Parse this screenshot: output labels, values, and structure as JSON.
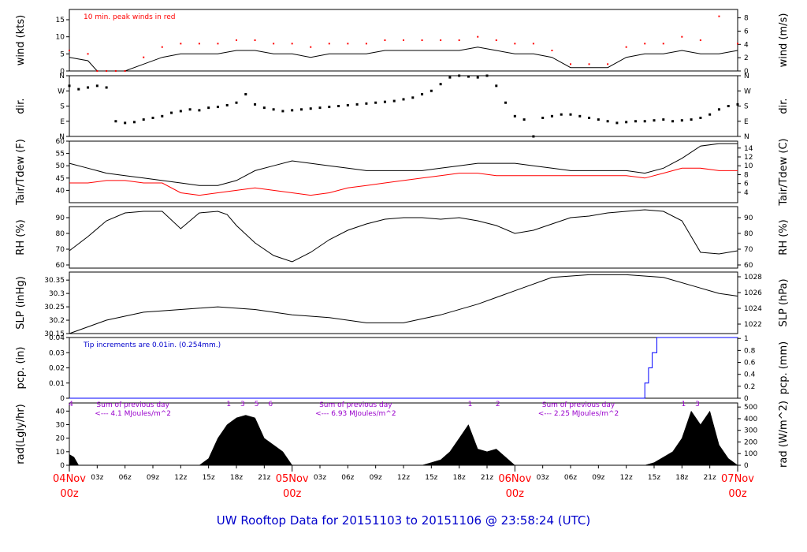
{
  "footer": {
    "title": "UW Rooftop Data for 20151103  to  20151106 @ 23:58:24  (UTC)"
  },
  "colors": {
    "temperature": "#000000",
    "dewpoint": "#ff0000",
    "peak_wind": "#ff0000",
    "precip": "#0000ff",
    "annotation_blue": "#0000cc",
    "annotation_purple": "#9900cc",
    "day_labels": "#ff0000"
  },
  "x_axis": {
    "hour_ticks": [
      "03z",
      "06z",
      "09z",
      "12z",
      "15z",
      "18z",
      "21z"
    ],
    "days": [
      {
        "date": "04Nov",
        "hour": "00z"
      },
      {
        "date": "05Nov",
        "hour": "00z"
      },
      {
        "date": "06Nov",
        "hour": "00z"
      },
      {
        "date": "07Nov",
        "hour": "00z"
      }
    ]
  },
  "chart_data": [
    {
      "id": "wind",
      "type": "line",
      "ylabel": "wind (kts)",
      "ylabel_right": "wind (m/s)",
      "ylim": [
        0,
        18
      ],
      "ticks": [
        0,
        5,
        10,
        15
      ],
      "ylim_right": [
        0,
        9.26
      ],
      "ticks_right": [
        0,
        2,
        4,
        6,
        8
      ],
      "annotation": "10 min. peak winds in red",
      "series": [
        {
          "name": "wind",
          "x": [
            0,
            2,
            3,
            4,
            5,
            6,
            8,
            10,
            12,
            14,
            16,
            18,
            20,
            22,
            24,
            26,
            28,
            30,
            32,
            34,
            36,
            38,
            40,
            42,
            44,
            46,
            48,
            50,
            52,
            54,
            56,
            58,
            60,
            62,
            64,
            66,
            68,
            70,
            72
          ],
          "values": [
            4,
            3,
            0,
            0,
            0,
            0,
            2,
            4,
            5,
            5,
            5,
            6,
            6,
            5,
            5,
            4,
            5,
            5,
            5,
            6,
            6,
            6,
            6,
            6,
            7,
            6,
            5,
            5,
            4,
            1,
            1,
            1,
            4,
            5,
            5,
            6,
            5,
            5,
            6
          ]
        },
        {
          "name": "10 min. peak winds",
          "x": [
            0,
            2,
            3,
            4,
            5,
            6,
            8,
            10,
            12,
            14,
            16,
            18,
            20,
            22,
            24,
            26,
            28,
            30,
            32,
            34,
            36,
            38,
            40,
            42,
            44,
            46,
            48,
            50,
            52,
            54,
            56,
            58,
            60,
            62,
            64,
            66,
            68,
            70,
            72
          ],
          "values": [
            6,
            5,
            0,
            0,
            0,
            0,
            4,
            7,
            8,
            8,
            8,
            9,
            9,
            8,
            8,
            7,
            8,
            8,
            8,
            9,
            9,
            9,
            9,
            9,
            10,
            9,
            8,
            8,
            6,
            2,
            2,
            2,
            7,
            8,
            8,
            10,
            9,
            16,
            8
          ]
        }
      ]
    },
    {
      "id": "dir",
      "type": "scatter",
      "ylabel": "dir.",
      "ylabel_right": "dir.",
      "ylim": [
        0,
        360
      ],
      "tick_values": [
        0,
        90,
        180,
        270,
        360
      ],
      "tick_labels": [
        "N",
        "E",
        "S",
        "W",
        "N"
      ],
      "series": [
        {
          "name": "direction",
          "x": [
            0,
            1,
            2,
            3,
            4,
            5,
            6,
            7,
            8,
            9,
            10,
            11,
            12,
            13,
            14,
            15,
            16,
            17,
            18,
            19,
            20,
            21,
            22,
            23,
            24,
            25,
            26,
            27,
            28,
            29,
            30,
            31,
            32,
            33,
            34,
            35,
            36,
            37,
            38,
            39,
            40,
            41,
            42,
            43,
            44,
            45,
            46,
            47,
            48,
            49,
            50,
            51,
            52,
            53,
            54,
            55,
            56,
            57,
            58,
            59,
            60,
            61,
            62,
            63,
            64,
            65,
            66,
            67,
            68,
            69,
            70,
            71,
            72
          ],
          "values": [
            300,
            280,
            290,
            300,
            290,
            90,
            80,
            85,
            100,
            110,
            120,
            140,
            150,
            160,
            155,
            170,
            175,
            185,
            200,
            250,
            190,
            170,
            160,
            150,
            155,
            160,
            165,
            170,
            175,
            180,
            185,
            190,
            195,
            200,
            205,
            210,
            220,
            230,
            250,
            270,
            310,
            350,
            360,
            355,
            350,
            360,
            300,
            200,
            120,
            100,
            0,
            110,
            120,
            130,
            130,
            120,
            110,
            100,
            90,
            80,
            85,
            90,
            90,
            95,
            100,
            90,
            95,
            100,
            110,
            130,
            160,
            180,
            190
          ]
        }
      ]
    },
    {
      "id": "temp",
      "type": "line",
      "ylabel": "Tair/Tdew (F)",
      "ylabel_right": "Tair/Tdew (C)",
      "ylim": [
        35,
        60
      ],
      "ticks": [
        40,
        45,
        50,
        55,
        60
      ],
      "ylim_right": [
        1.67,
        15.56
      ],
      "ticks_right": [
        4,
        6,
        8,
        10,
        12,
        14
      ],
      "series": [
        {
          "name": "Tair",
          "x": [
            0,
            2,
            4,
            6,
            8,
            10,
            12,
            14,
            16,
            18,
            20,
            22,
            24,
            26,
            28,
            30,
            32,
            34,
            36,
            38,
            40,
            42,
            44,
            46,
            48,
            50,
            52,
            54,
            56,
            58,
            60,
            62,
            64,
            66,
            68,
            70,
            72
          ],
          "values": [
            51,
            49,
            47,
            46,
            45,
            44,
            43,
            42,
            42,
            44,
            48,
            50,
            52,
            51,
            50,
            49,
            48,
            48,
            48,
            48,
            49,
            50,
            51,
            51,
            51,
            50,
            49,
            48,
            48,
            48,
            48,
            47,
            49,
            53,
            58,
            59,
            59
          ]
        },
        {
          "name": "Tdew",
          "x": [
            0,
            2,
            4,
            6,
            8,
            10,
            12,
            14,
            16,
            18,
            20,
            22,
            24,
            26,
            28,
            30,
            32,
            34,
            36,
            38,
            40,
            42,
            44,
            46,
            48,
            50,
            52,
            54,
            56,
            58,
            60,
            62,
            64,
            66,
            68,
            70,
            72
          ],
          "values": [
            43,
            43,
            44,
            44,
            43,
            43,
            39,
            38,
            39,
            40,
            41,
            40,
            39,
            38,
            39,
            41,
            42,
            43,
            44,
            45,
            46,
            47,
            47,
            46,
            46,
            46,
            46,
            46,
            46,
            46,
            46,
            45,
            47,
            49,
            49,
            48,
            48
          ]
        }
      ]
    },
    {
      "id": "rh",
      "type": "line",
      "ylabel": "RH (%)",
      "ylabel_right": "RH (%)",
      "ylim": [
        58,
        97
      ],
      "ticks": [
        60,
        70,
        80,
        90
      ],
      "series": [
        {
          "name": "RH",
          "x": [
            0,
            2,
            4,
            6,
            8,
            10,
            12,
            14,
            16,
            17,
            18,
            20,
            22,
            24,
            26,
            28,
            30,
            32,
            34,
            36,
            38,
            40,
            42,
            44,
            46,
            48,
            50,
            52,
            54,
            56,
            58,
            60,
            62,
            64,
            66,
            68,
            70,
            72
          ],
          "values": [
            69,
            78,
            88,
            93,
            94,
            94,
            83,
            93,
            94,
            92,
            85,
            74,
            66,
            62,
            68,
            76,
            82,
            86,
            89,
            90,
            90,
            89,
            90,
            88,
            85,
            80,
            82,
            86,
            90,
            91,
            93,
            94,
            95,
            94,
            88,
            68,
            67,
            69
          ]
        }
      ]
    },
    {
      "id": "slp",
      "type": "line",
      "ylabel": "SLP (inHg)",
      "ylabel_right": "SLP (hPa)",
      "ylim": [
        30.15,
        30.38
      ],
      "ticks": [
        30.15,
        30.2,
        30.25,
        30.3,
        30.35
      ],
      "ylim_right": [
        1020.8,
        1028.6
      ],
      "ticks_right": [
        1022,
        1024,
        1026,
        1028
      ],
      "series": [
        {
          "name": "SLP",
          "x": [
            0,
            4,
            8,
            12,
            16,
            20,
            24,
            28,
            32,
            36,
            40,
            44,
            48,
            52,
            56,
            60,
            64,
            68,
            70,
            72
          ],
          "values": [
            30.15,
            30.2,
            30.23,
            30.24,
            30.25,
            30.24,
            30.22,
            30.21,
            30.19,
            30.19,
            30.22,
            30.26,
            30.31,
            30.36,
            30.37,
            30.37,
            30.36,
            30.32,
            30.3,
            30.29
          ]
        }
      ]
    },
    {
      "id": "pcp",
      "type": "line",
      "ylabel": "pcp. (in)",
      "ylabel_right": "pcp. (mm)",
      "ylim": [
        0,
        0.04
      ],
      "ticks": [
        0,
        0.01,
        0.02,
        0.03,
        0.04
      ],
      "ylim_right": [
        0,
        1.016
      ],
      "ticks_right": [
        0,
        0.2,
        0.4,
        0.6,
        0.8,
        1
      ],
      "annotation": "Tip increments are 0.01in. (0.254mm.)",
      "series": [
        {
          "name": "precipitation",
          "x": [
            0,
            62.0,
            62.0,
            62.4,
            62.4,
            62.8,
            62.8,
            63.3,
            63.3,
            72
          ],
          "values": [
            0,
            0,
            0.01,
            0.01,
            0.02,
            0.02,
            0.03,
            0.03,
            0.04,
            0.04
          ]
        }
      ]
    },
    {
      "id": "rad",
      "type": "area",
      "ylabel": "rad(Lgly/hr)",
      "ylabel_right": "rad (W/m^2)",
      "ylim": [
        0,
        46
      ],
      "ticks": [
        0,
        10,
        20,
        30,
        40
      ],
      "ylim_right": [
        0,
        535
      ],
      "ticks_right": [
        0,
        100,
        200,
        300,
        400,
        500
      ],
      "hour_marks": [
        {
          "x": 0,
          "label": "4"
        },
        {
          "x": 17,
          "label": "1"
        },
        {
          "x": 18.5,
          "label": "3"
        },
        {
          "x": 20,
          "label": "5"
        },
        {
          "x": 21.5,
          "label": "6"
        },
        {
          "x": 43,
          "label": "1"
        },
        {
          "x": 46,
          "label": "2"
        },
        {
          "x": 66,
          "label": "1"
        },
        {
          "x": 67.5,
          "label": "3"
        }
      ],
      "day_sums": [
        {
          "x": 6,
          "line1": "Sum of previous day",
          "line2": "<--- 4.1 MJoules/m^2"
        },
        {
          "x": 30,
          "line1": "Sum of previous day",
          "line2": "<--- 6.93 MJoules/m^2"
        },
        {
          "x": 54,
          "line1": "Sum of previous day",
          "line2": "<--- 2.25 MJoules/m^2"
        }
      ],
      "series": [
        {
          "name": "radiation",
          "x": [
            0,
            0.5,
            1,
            1.5,
            14,
            15,
            16,
            17,
            18,
            19,
            20,
            21,
            22,
            23,
            24,
            38,
            39,
            40,
            41,
            42,
            43,
            44,
            45,
            46,
            47,
            48,
            62,
            63,
            64,
            65,
            66,
            67,
            68,
            69,
            70,
            71,
            72
          ],
          "values": [
            8,
            6,
            0,
            0,
            0,
            5,
            20,
            30,
            35,
            37,
            35,
            20,
            15,
            10,
            0,
            0,
            2,
            4,
            10,
            20,
            30,
            12,
            10,
            12,
            6,
            0,
            0,
            2,
            6,
            10,
            20,
            40,
            30,
            40,
            15,
            5,
            0
          ]
        }
      ]
    }
  ]
}
